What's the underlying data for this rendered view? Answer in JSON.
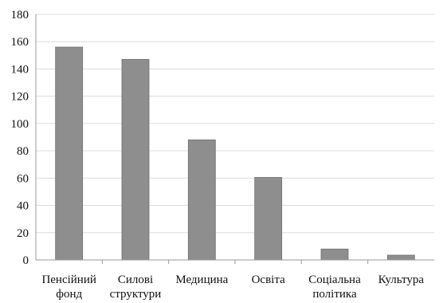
{
  "chart_data": {
    "type": "bar",
    "title": "",
    "xlabel": "",
    "ylabel": "",
    "categories": [
      [
        "Пенсійний",
        "фонд"
      ],
      [
        "Силові",
        "структури"
      ],
      [
        "Медицина"
      ],
      [
        "Освіта"
      ],
      [
        "Соціальна",
        "політика"
      ],
      [
        "Культура"
      ]
    ],
    "values": [
      156,
      147,
      88,
      60.5,
      8,
      3.5
    ],
    "ylim": [
      0,
      180
    ],
    "yticks": [
      0,
      20,
      40,
      60,
      80,
      100,
      120,
      140,
      160,
      180
    ],
    "grid": true,
    "bar_color": "#8e8e8e"
  }
}
